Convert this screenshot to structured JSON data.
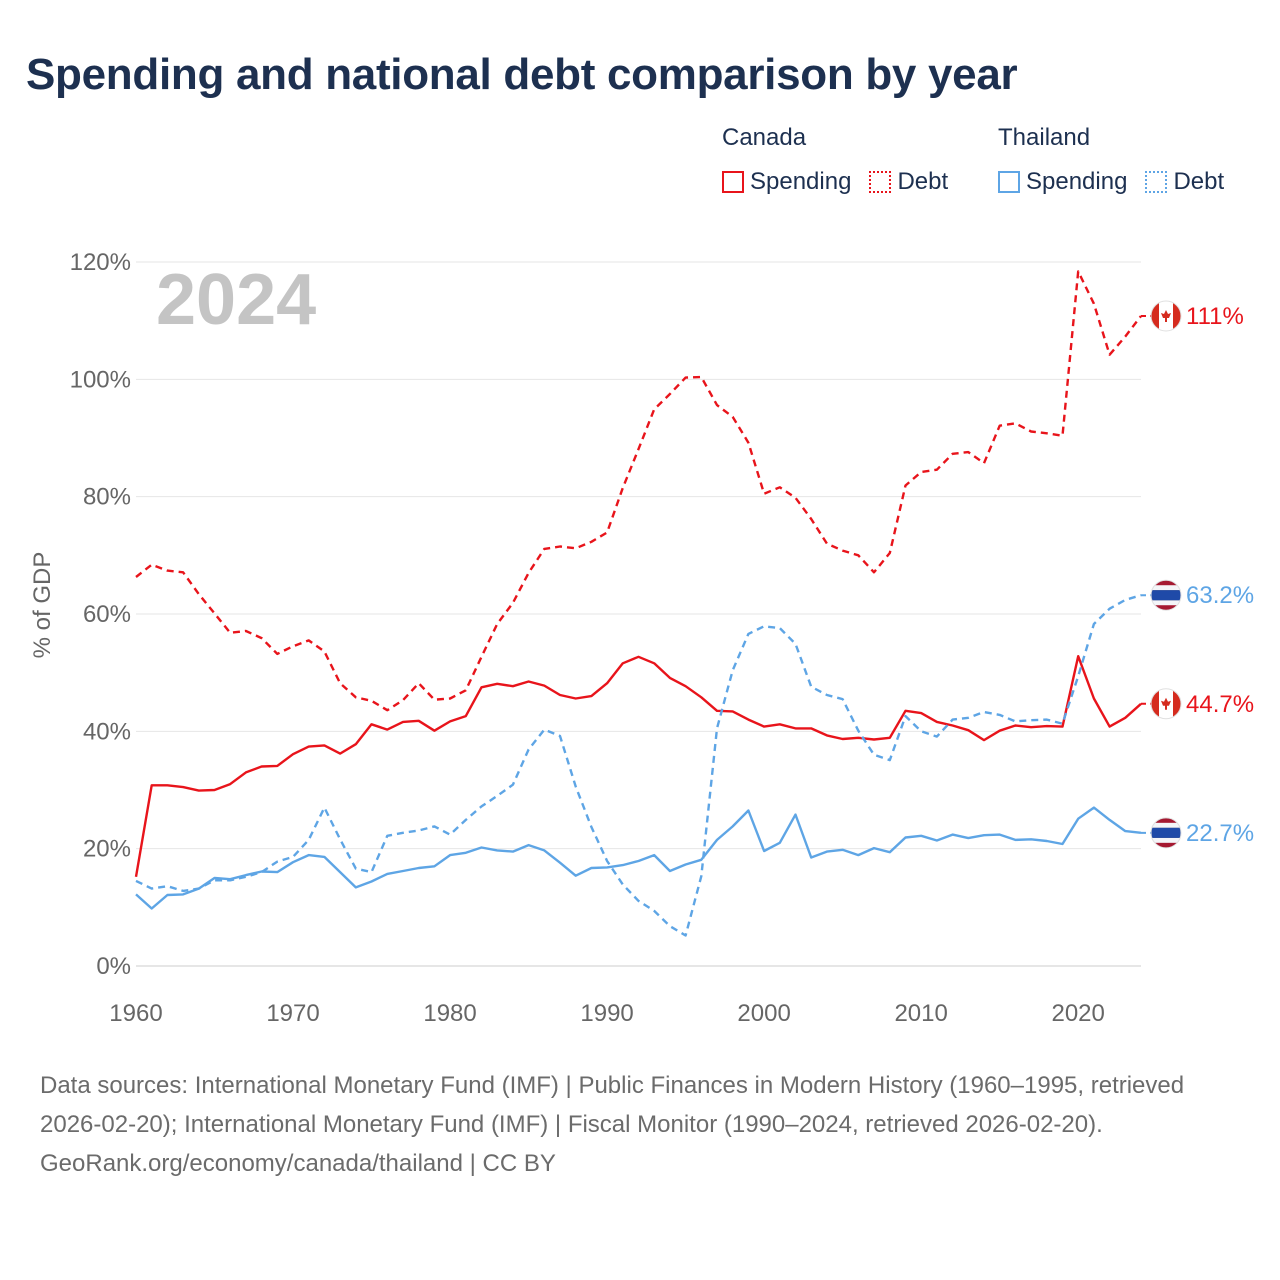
{
  "title": "Spending and national debt comparison by year",
  "legend": {
    "groups": [
      {
        "country": "Canada",
        "spending_label": "Spending",
        "debt_label": "Debt",
        "color": "#e8141b"
      },
      {
        "country": "Thailand",
        "spending_label": "Spending",
        "debt_label": "Debt",
        "color": "#5ea5e5"
      }
    ]
  },
  "year_label": "2024",
  "sources": {
    "line1": "Data sources: International Monetary Fund (IMF) | Public Finances in Modern History (1960–1995, retrieved 2026-02-20); International Monetary Fund (IMF) | Fiscal Monitor (1990–2024, retrieved 2026-02-20).",
    "line2": "GeoRank.org/economy/canada/thailand | CC BY"
  },
  "chart_data": {
    "type": "line",
    "title": "Spending and national debt comparison by year",
    "xlabel": "",
    "ylabel": "% of GDP",
    "xlim": [
      1960,
      2024
    ],
    "ylim": [
      0,
      120
    ],
    "x_ticks": [
      "1960",
      "1970",
      "1980",
      "1990",
      "2000",
      "2010",
      "2020"
    ],
    "x_tick_values": [
      1960,
      1970,
      1980,
      1990,
      2000,
      2010,
      2020
    ],
    "y_ticks": [
      "0%",
      "20%",
      "40%",
      "60%",
      "80%",
      "100%",
      "120%"
    ],
    "y_tick_values": [
      0,
      20,
      40,
      60,
      80,
      100,
      120
    ],
    "grid": true,
    "x": [
      1960,
      1961,
      1962,
      1963,
      1964,
      1965,
      1966,
      1967,
      1968,
      1969,
      1970,
      1971,
      1972,
      1973,
      1974,
      1975,
      1976,
      1977,
      1978,
      1979,
      1980,
      1981,
      1982,
      1983,
      1984,
      1985,
      1986,
      1987,
      1988,
      1989,
      1990,
      1991,
      1992,
      1993,
      1994,
      1995,
      1996,
      1997,
      1998,
      1999,
      2000,
      2001,
      2002,
      2003,
      2004,
      2005,
      2006,
      2007,
      2008,
      2009,
      2010,
      2011,
      2012,
      2013,
      2014,
      2015,
      2016,
      2017,
      2018,
      2019,
      2020,
      2021,
      2022,
      2023,
      2024
    ],
    "series": [
      {
        "name": "Canada Spending",
        "country": "Canada",
        "color": "#e8141b",
        "dash": false,
        "end_label": "44.7%",
        "flag": "canada",
        "values": [
          15.2,
          30.8,
          30.8,
          30.5,
          29.9,
          30.0,
          31.0,
          33.0,
          34.0,
          34.1,
          36.1,
          37.4,
          37.6,
          36.2,
          37.8,
          41.2,
          40.3,
          41.6,
          41.8,
          40.1,
          41.7,
          42.6,
          47.5,
          48.1,
          47.7,
          48.5,
          47.8,
          46.2,
          45.6,
          46.0,
          48.2,
          51.6,
          52.7,
          51.6,
          49.1,
          47.7,
          45.8,
          43.5,
          43.4,
          42.0,
          40.8,
          41.2,
          40.5,
          40.5,
          39.3,
          38.7,
          38.9,
          38.6,
          38.9,
          43.5,
          43.1,
          41.6,
          41.0,
          40.2,
          38.5,
          40.1,
          41.0,
          40.7,
          40.9,
          40.8,
          52.8,
          45.6,
          40.8,
          42.3,
          44.7
        ]
      },
      {
        "name": "Canada Debt",
        "country": "Canada",
        "color": "#e8141b",
        "dash": true,
        "end_label": "111%",
        "flag": "canada",
        "values": [
          66.3,
          68.4,
          67.4,
          67.1,
          63.4,
          60.1,
          56.8,
          57.1,
          55.9,
          53.2,
          54.5,
          55.5,
          53.6,
          48.2,
          45.8,
          45.2,
          43.6,
          45.3,
          48.2,
          45.4,
          45.6,
          47.0,
          52.7,
          58.3,
          61.9,
          67.0,
          71.1,
          71.5,
          71.2,
          72.3,
          73.9,
          81.5,
          88.1,
          94.9,
          97.5,
          100.3,
          100.4,
          95.6,
          93.6,
          89.2,
          80.5,
          81.6,
          79.8,
          76.2,
          72.0,
          70.8,
          70.0,
          67.1,
          70.4,
          81.9,
          84.2,
          84.6,
          87.3,
          87.6,
          85.7,
          92.1,
          92.5,
          91.1,
          90.8,
          90.4,
          118.4,
          112.9,
          104.2,
          107.3,
          110.8
        ]
      },
      {
        "name": "Thailand Spending",
        "country": "Thailand",
        "color": "#5ea5e5",
        "dash": false,
        "end_label": "22.7%",
        "flag": "thailand",
        "values": [
          12.2,
          9.8,
          12.1,
          12.2,
          13.2,
          15.0,
          14.8,
          15.5,
          16.1,
          16.0,
          17.7,
          18.9,
          18.6,
          16.0,
          13.4,
          14.4,
          15.7,
          16.2,
          16.7,
          17.0,
          18.9,
          19.3,
          20.2,
          19.7,
          19.5,
          20.6,
          19.7,
          17.6,
          15.4,
          16.7,
          16.8,
          17.2,
          17.9,
          18.9,
          16.2,
          17.3,
          18.1,
          21.5,
          23.8,
          26.5,
          19.6,
          21.0,
          25.8,
          18.5,
          19.5,
          19.8,
          18.9,
          20.1,
          19.4,
          21.9,
          22.2,
          21.4,
          22.4,
          21.8,
          22.3,
          22.4,
          21.5,
          21.6,
          21.3,
          20.8,
          25.1,
          27.0,
          24.9,
          23.0,
          22.7
        ]
      },
      {
        "name": "Thailand Debt",
        "country": "Thailand",
        "color": "#5ea5e5",
        "dash": true,
        "end_label": "63.2%",
        "flag": "thailand",
        "values": [
          14.5,
          13.2,
          13.6,
          12.8,
          13.2,
          14.6,
          14.6,
          15.2,
          16.0,
          17.8,
          18.6,
          21.5,
          27.0,
          21.6,
          16.6,
          16.0,
          22.2,
          22.7,
          23.1,
          23.8,
          22.4,
          24.9,
          27.2,
          29.0,
          30.9,
          36.9,
          40.3,
          39.2,
          30.6,
          23.7,
          17.9,
          13.9,
          11.1,
          9.4,
          6.8,
          5.2,
          15.3,
          40.5,
          50.4,
          56.6,
          57.9,
          57.6,
          54.9,
          47.6,
          46.2,
          45.5,
          40.1,
          36.0,
          35.1,
          42.6,
          40.0,
          39.1,
          42.0,
          42.3,
          43.3,
          42.8,
          41.7,
          41.9,
          42.0,
          41.3,
          49.4,
          58.3,
          60.9,
          62.4,
          63.2
        ]
      }
    ]
  }
}
